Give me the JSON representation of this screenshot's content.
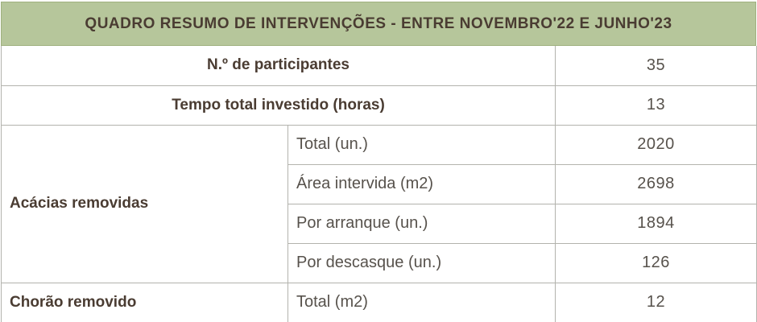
{
  "header": {
    "title": "QUADRO RESUMO DE INTERVENÇÕES - ENTRE NOVEMBRO'22 E JUNHO'23"
  },
  "rows": {
    "participants": {
      "label": "N.º de participantes",
      "value": "35"
    },
    "time": {
      "label": "Tempo total investido (horas)",
      "value": "13"
    },
    "acacias": {
      "label": "Acácias removidas",
      "sub": [
        {
          "label": "Total (un.)",
          "value": "2020"
        },
        {
          "label": "Área intervida (m2)",
          "value": "2698"
        },
        {
          "label": "Por arranque (un.)",
          "value": "1894"
        },
        {
          "label": "Por descasque (un.)",
          "value": "126"
        }
      ]
    },
    "chorao": {
      "label": "Chorão removido",
      "sub_label": "Total (m2)",
      "value": "12"
    }
  },
  "colors": {
    "header_bg": "#b6c69b",
    "header_border": "#9fb17f",
    "title_color": "#4a3c32",
    "text_color": "#57524c",
    "grid_color": "#b3b3ad",
    "page_bg": "#ffffff"
  },
  "chart_data": {
    "type": "table",
    "title": "QUADRO RESUMO DE INTERVENÇÕES - ENTRE NOVEMBRO'22 E JUNHO'23",
    "rows": [
      {
        "group": "N.º de participantes",
        "metric": "",
        "value": 35
      },
      {
        "group": "Tempo total investido (horas)",
        "metric": "",
        "value": 13
      },
      {
        "group": "Acácias removidas",
        "metric": "Total (un.)",
        "value": 2020
      },
      {
        "group": "Acácias removidas",
        "metric": "Área intervida (m2)",
        "value": 2698
      },
      {
        "group": "Acácias removidas",
        "metric": "Por arranque (un.)",
        "value": 1894
      },
      {
        "group": "Acácias removidas",
        "metric": "Por descasque (un.)",
        "value": 126
      },
      {
        "group": "Chorão removido",
        "metric": "Total (m2)",
        "value": 12
      }
    ]
  }
}
